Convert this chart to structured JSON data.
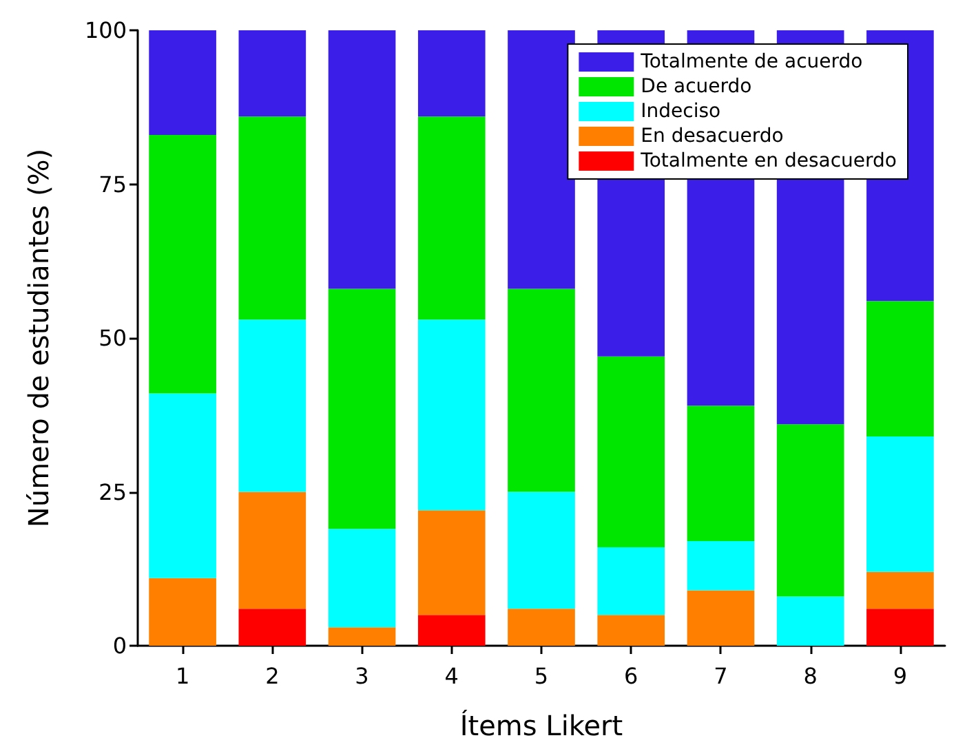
{
  "chart_data": {
    "type": "bar",
    "stacked": true,
    "xlabel": "Ítems Likert",
    "ylabel": "Número de estudiantes (%)",
    "categories": [
      "1",
      "2",
      "3",
      "4",
      "5",
      "6",
      "7",
      "8",
      "9"
    ],
    "series": [
      {
        "name": "Totalmente en desacuerdo",
        "color": "#ff0000",
        "values": [
          0,
          6,
          0,
          5,
          0,
          0,
          0,
          0,
          6
        ]
      },
      {
        "name": "En desacuerdo",
        "color": "#ff8000",
        "values": [
          11,
          19,
          3,
          17,
          6,
          5,
          9,
          0,
          6
        ]
      },
      {
        "name": "Indeciso",
        "color": "#00ffff",
        "values": [
          30,
          28,
          16,
          31,
          19,
          11,
          8,
          8,
          22
        ]
      },
      {
        "name": "De acuerdo",
        "color": "#00e600",
        "values": [
          42,
          33,
          39,
          33,
          33,
          31,
          22,
          28,
          22
        ]
      },
      {
        "name": "Totalmente de acuerdo",
        "color": "#3b1fe8",
        "values": [
          17,
          14,
          42,
          14,
          42,
          53,
          61,
          64,
          44
        ]
      }
    ],
    "ylim": [
      0,
      100
    ],
    "yticks": [
      0,
      25,
      50,
      75,
      100
    ],
    "grid": false,
    "legend": "top right"
  }
}
